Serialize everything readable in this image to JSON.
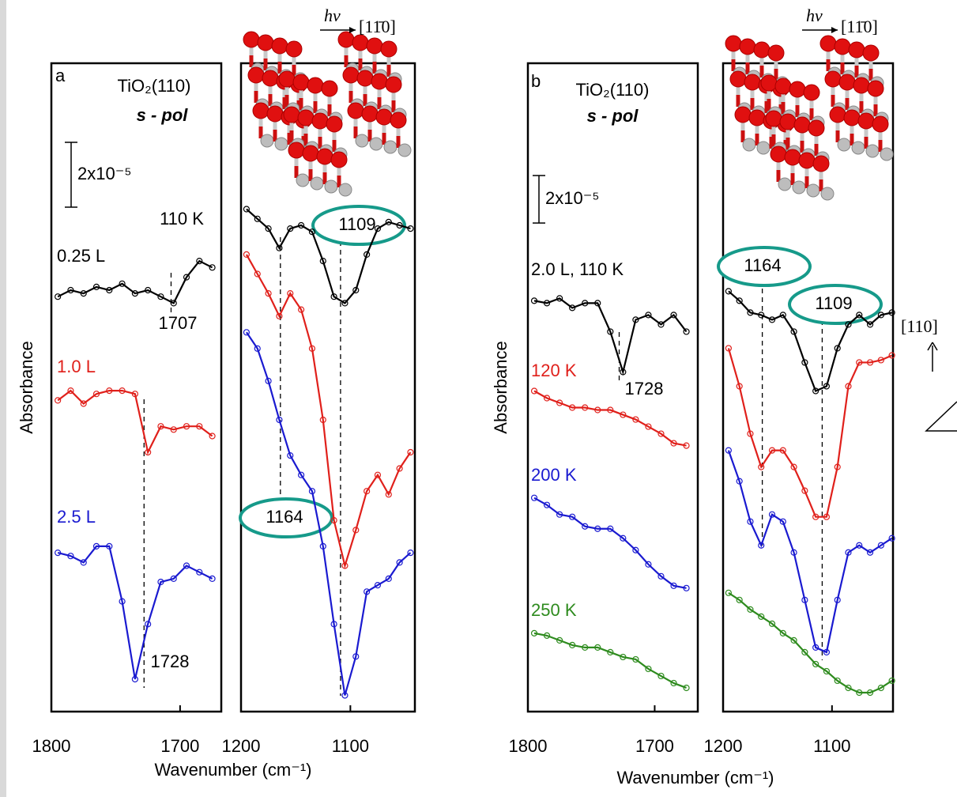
{
  "chart_data": [
    {
      "type": "line",
      "panel_label": "a",
      "surface": "TiO₂(110)",
      "polarization": "s - pol",
      "annotation": "110 K",
      "y_label": "Absorbance",
      "x_label": "Wavenumber (cm⁻¹)",
      "scale_bar": {
        "value": 2,
        "label": "2x10⁻⁵"
      },
      "xlim": [
        1800,
        1668
      ],
      "xticks": [
        1800,
        1700
      ],
      "ylim": [
        0,
        20
      ],
      "peaks": [
        1707,
        1728
      ],
      "x": [
        1795,
        1785,
        1775,
        1765,
        1755,
        1745,
        1735,
        1725,
        1715,
        1705,
        1695,
        1685,
        1675
      ],
      "series": [
        {
          "name": "0.25 L",
          "color": "#000000",
          "values": [
            12.8,
            13.0,
            12.9,
            13.1,
            13.0,
            13.2,
            12.9,
            13.0,
            12.8,
            12.6,
            13.4,
            13.9,
            13.7
          ]
        },
        {
          "name": "1.0 L",
          "color": "#e0201b",
          "values": [
            9.6,
            9.9,
            9.5,
            9.8,
            9.9,
            9.9,
            9.8,
            8.0,
            8.8,
            8.7,
            8.8,
            8.8,
            8.5
          ]
        },
        {
          "name": "2.5 L",
          "color": "#1a1ad0",
          "values": [
            4.9,
            4.8,
            4.6,
            5.1,
            5.1,
            3.4,
            1.0,
            2.7,
            4.0,
            4.1,
            4.5,
            4.3,
            4.1
          ]
        }
      ]
    },
    {
      "type": "line",
      "excitation": "hν",
      "direction": "[11̄0]",
      "xlim": [
        1200,
        1041
      ],
      "xticks": [
        1200,
        1100
      ],
      "ylim": [
        0,
        20
      ],
      "peaks": [
        1164,
        1109
      ],
      "x": [
        1195,
        1185,
        1175,
        1165,
        1155,
        1145,
        1135,
        1125,
        1115,
        1105,
        1095,
        1085,
        1075,
        1065,
        1055,
        1045
      ],
      "series": [
        {
          "color": "#000000",
          "values": [
            15.5,
            15.2,
            14.9,
            14.3,
            14.9,
            15.0,
            14.8,
            13.9,
            12.8,
            12.6,
            13.0,
            14.1,
            14.9,
            15.1,
            15.0,
            14.9
          ]
        },
        {
          "color": "#e0201b",
          "values": [
            14.1,
            13.5,
            12.9,
            12.2,
            12.9,
            12.4,
            11.2,
            9.0,
            5.9,
            4.5,
            5.6,
            6.8,
            7.3,
            6.7,
            7.5,
            8.0
          ]
        },
        {
          "color": "#1a1ad0",
          "values": [
            11.7,
            11.2,
            10.2,
            9.0,
            7.9,
            7.3,
            6.8,
            5.1,
            2.7,
            0.5,
            1.7,
            3.7,
            3.9,
            4.1,
            4.6,
            4.9
          ]
        }
      ]
    },
    {
      "type": "line",
      "panel_label": "b",
      "surface": "TiO₂(110)",
      "polarization": "s - pol",
      "y_label": "Absorbance",
      "x_label": "Wavenumber (cm⁻¹)",
      "scale_bar": {
        "value": 2,
        "label": "2x10⁻⁵"
      },
      "xlim": [
        1800,
        1666
      ],
      "xticks": [
        1800,
        1700
      ],
      "ylim": [
        0,
        27.3
      ],
      "peaks": [
        1728
      ],
      "x": [
        1795,
        1785,
        1775,
        1765,
        1755,
        1745,
        1735,
        1725,
        1715,
        1705,
        1695,
        1685,
        1675
      ],
      "series": [
        {
          "name": "2.0 L, 110 K",
          "color": "#000000",
          "values": [
            17.3,
            17.2,
            17.4,
            17.0,
            17.2,
            17.2,
            16.0,
            14.3,
            16.5,
            16.7,
            16.3,
            16.7,
            16.0
          ]
        },
        {
          "name": "120 K",
          "color": "#e0201b",
          "values": [
            13.5,
            13.2,
            13.0,
            12.8,
            12.8,
            12.7,
            12.7,
            12.5,
            12.3,
            12.0,
            11.7,
            11.3,
            11.2
          ]
        },
        {
          "name": "200 K",
          "color": "#1a1ad0",
          "values": [
            9.0,
            8.7,
            8.3,
            8.2,
            7.8,
            7.7,
            7.7,
            7.3,
            6.8,
            6.2,
            5.7,
            5.3,
            5.2
          ]
        },
        {
          "name": "250 K",
          "color": "#2e8b1e",
          "values": [
            3.3,
            3.2,
            3.0,
            2.8,
            2.7,
            2.7,
            2.5,
            2.3,
            2.2,
            1.8,
            1.5,
            1.2,
            1.0
          ]
        }
      ]
    },
    {
      "type": "line",
      "excitation": "hν",
      "direction": "[11̄0]",
      "surface_normal": "[110]",
      "xlim": [
        1200,
        1044
      ],
      "xticks": [
        1200,
        1100
      ],
      "ylim": [
        0,
        27.3
      ],
      "peaks": [
        1164,
        1109
      ],
      "x": [
        1195,
        1185,
        1175,
        1165,
        1155,
        1145,
        1135,
        1125,
        1115,
        1105,
        1095,
        1085,
        1075,
        1065,
        1055,
        1045
      ],
      "series": [
        {
          "color": "#000000",
          "values": [
            17.7,
            17.3,
            16.8,
            16.7,
            16.5,
            16.7,
            16.0,
            14.7,
            13.5,
            13.7,
            15.3,
            16.3,
            16.7,
            16.3,
            16.7,
            16.8
          ]
        },
        {
          "color": "#e0201b",
          "values": [
            15.3,
            13.7,
            11.7,
            10.3,
            11.0,
            11.0,
            10.3,
            9.3,
            8.2,
            8.2,
            10.3,
            13.7,
            14.7,
            14.7,
            14.8,
            15.0
          ]
        },
        {
          "color": "#1a1ad0",
          "values": [
            11.0,
            9.7,
            8.0,
            7.0,
            8.3,
            8.0,
            6.7,
            4.7,
            2.7,
            2.5,
            4.7,
            6.7,
            7.0,
            6.7,
            7.0,
            7.3
          ]
        },
        {
          "color": "#2e8b1e",
          "values": [
            5.0,
            4.7,
            4.3,
            4.0,
            3.7,
            3.3,
            3.0,
            2.5,
            2.0,
            1.7,
            1.3,
            1.0,
            0.8,
            0.8,
            1.0,
            1.3
          ]
        }
      ]
    }
  ]
}
